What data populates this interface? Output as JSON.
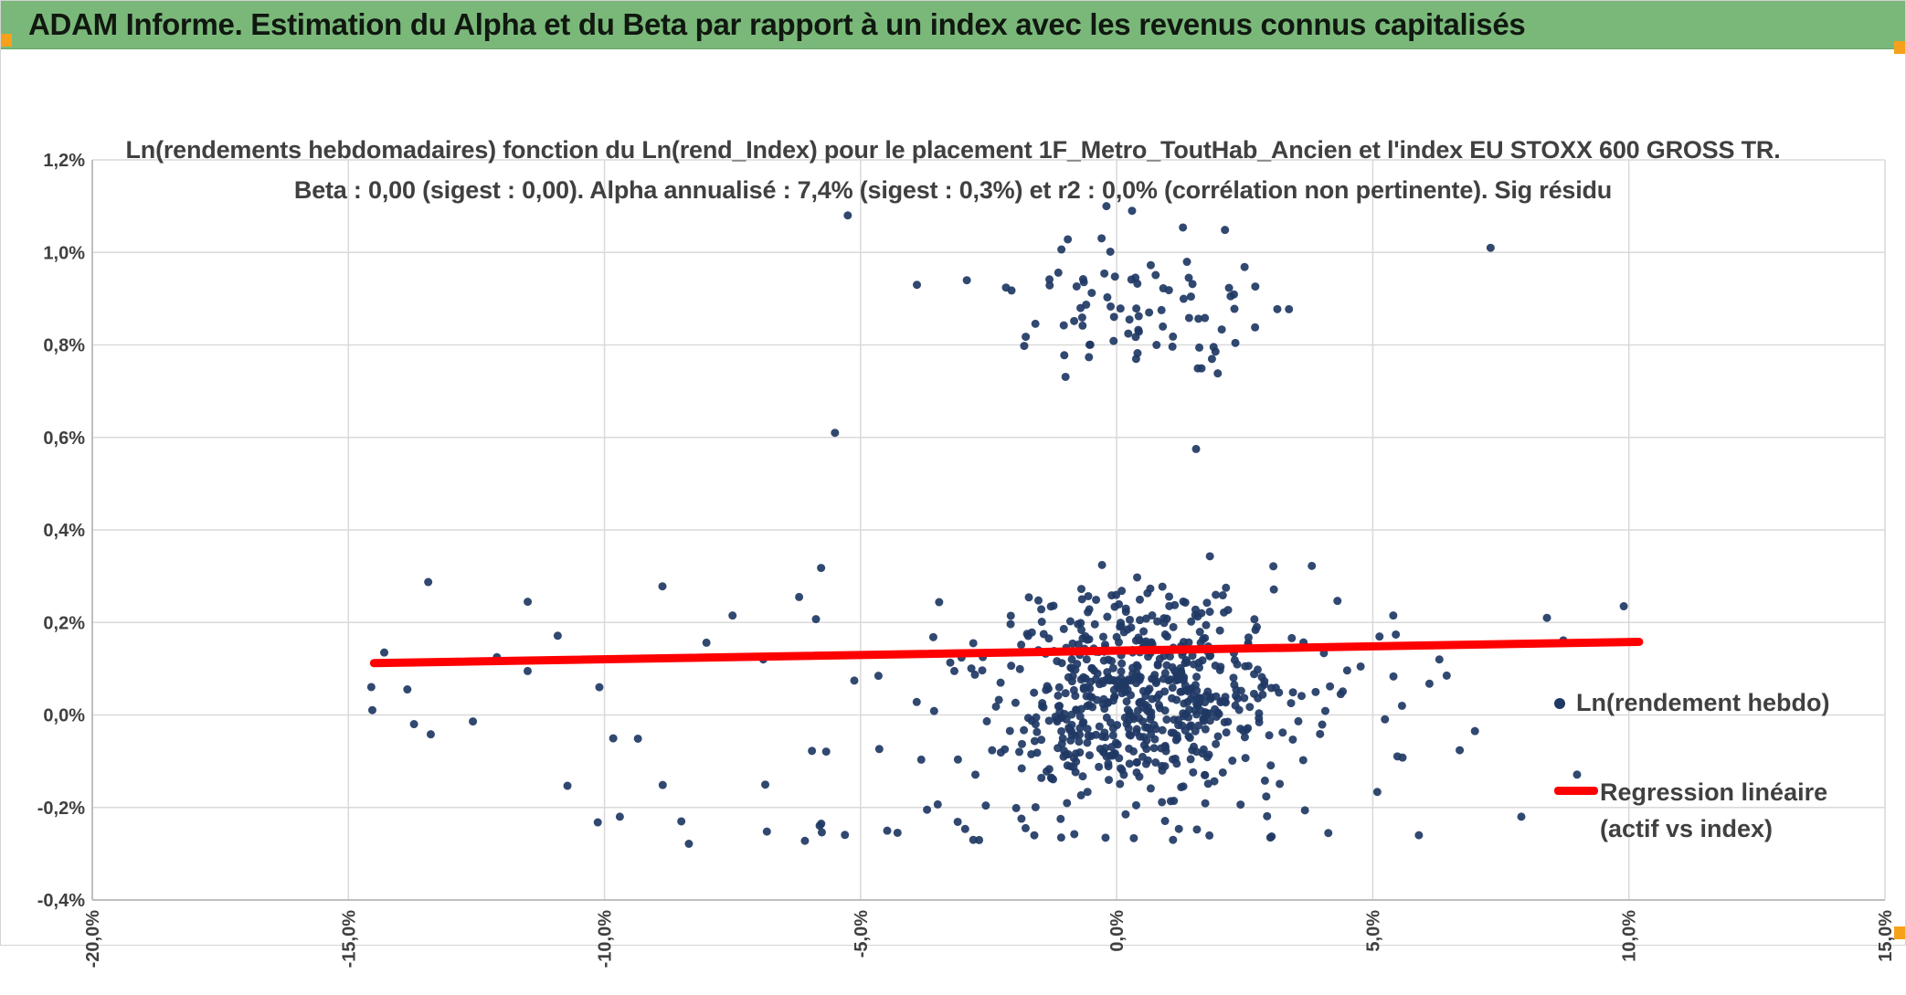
{
  "header": {
    "title": "ADAM Informe. Estimation du Alpha et du Beta par rapport à un index avec les revenus connus capitalisés",
    "bg_color": "#7ab87a",
    "accent_color": "#f7a11a"
  },
  "chart_data": {
    "type": "scatter",
    "title_line1": "Ln(rendements hebdomadaires) fonction du Ln(rend_Index) pour le placement 1F_Metro_ToutHab_Ancien et l'index EU STOXX 600 GROSS TR.",
    "title_line2": "Beta : 0,00 (sigest : 0,00). Alpha annualisé : 7,4% (sigest : 0,3%) et r2 : 0,0% (corrélation non pertinente). Sig résidu",
    "xlabel": "",
    "ylabel": "",
    "xlim": [
      -20,
      15
    ],
    "ylim": [
      -0.4,
      1.2
    ],
    "x_ticks": [
      "-20,0%",
      "-15,0%",
      "-10,0%",
      "-5,0%",
      "0,0%",
      "5,0%",
      "10,0%",
      "15,0%"
    ],
    "x_tick_values": [
      -20,
      -15,
      -10,
      -5,
      0,
      5,
      10,
      15
    ],
    "y_ticks": [
      "1,2%",
      "1,0%",
      "0,8%",
      "0,6%",
      "0,4%",
      "0,2%",
      "0,0%",
      "-0,2%",
      "-0,4%"
    ],
    "y_tick_values": [
      1.2,
      1.0,
      0.8,
      0.6,
      0.4,
      0.2,
      0.0,
      -0.2,
      -0.4
    ],
    "grid": true,
    "grid_color": "#d9d9d9",
    "legend_position": "right-inside",
    "legend": [
      {
        "label": "Ln(rendement hebdo)",
        "marker": "dot",
        "color": "#1f3864"
      },
      {
        "label_line1": "Regression linéaire",
        "label_line2": "(actif vs index)",
        "marker": "line",
        "color": "#ff0000"
      }
    ],
    "series": [
      {
        "name": "Ln(rendement hebdo)",
        "type": "scatter",
        "color": "#1f3864",
        "marker_radius": 4.5,
        "seed": 42,
        "clusters": [
          {
            "n": 470,
            "cx": 0.4,
            "cy": 0.04,
            "sx": 1.25,
            "sy": 0.105,
            "clip_x": [
              -5.5,
              5.2
            ],
            "clip_y": [
              -0.28,
              0.37
            ]
          },
          {
            "n": 175,
            "cx": 0.2,
            "cy": 0.05,
            "sx": 2.4,
            "sy": 0.135,
            "clip_x": [
              -6.5,
              6.0
            ],
            "clip_y": [
              -0.27,
              0.33
            ]
          },
          {
            "n": 85,
            "cx": 0.6,
            "cy": 0.88,
            "sx": 1.55,
            "sy": 0.09,
            "clip_x": [
              -3.6,
              4.3
            ],
            "clip_y": [
              0.57,
              1.1
            ]
          },
          {
            "n": 40,
            "uniform_x": [
              -15.2,
              10.3
            ],
            "cy": 0.02,
            "sy": 0.13,
            "clip_y": [
              -0.27,
              0.3
            ]
          },
          {
            "n": 22,
            "cx": -1.5,
            "cy": -0.245,
            "sx": 4.2,
            "sy": 0.02,
            "clip_x": [
              -10.2,
              4.6
            ],
            "clip_y": [
              -0.28,
              -0.2
            ]
          }
        ],
        "extra_points": [
          [
            -5.25,
            1.08
          ],
          [
            -3.9,
            0.93
          ],
          [
            -5.5,
            0.61
          ],
          [
            7.3,
            1.01
          ],
          [
            1.55,
            0.575
          ],
          [
            -0.2,
            1.1
          ],
          [
            0.3,
            1.09
          ],
          [
            9.9,
            0.235
          ],
          [
            8.4,
            0.21
          ],
          [
            -14.3,
            0.135
          ],
          [
            -11.5,
            0.095
          ],
          [
            -9.7,
            -0.22
          ],
          [
            -8.5,
            -0.23
          ],
          [
            -7.5,
            0.215
          ],
          [
            -6.9,
            0.12
          ],
          [
            -10.1,
            0.06
          ],
          [
            -12.1,
            0.125
          ],
          [
            5.9,
            -0.26
          ],
          [
            7.9,
            -0.22
          ],
          [
            6.3,
            0.12
          ],
          [
            5.4,
            0.215
          ],
          [
            -6.2,
            0.255
          ],
          [
            -2.8,
            -0.27
          ],
          [
            1.1,
            -0.27
          ],
          [
            3.0,
            -0.265
          ]
        ]
      },
      {
        "name": "Regression linéaire (actif vs index)",
        "type": "line",
        "color": "#ff0000",
        "stroke_width": 9,
        "points": [
          [
            -14.5,
            0.112
          ],
          [
            10.2,
            0.158
          ]
        ]
      }
    ]
  }
}
